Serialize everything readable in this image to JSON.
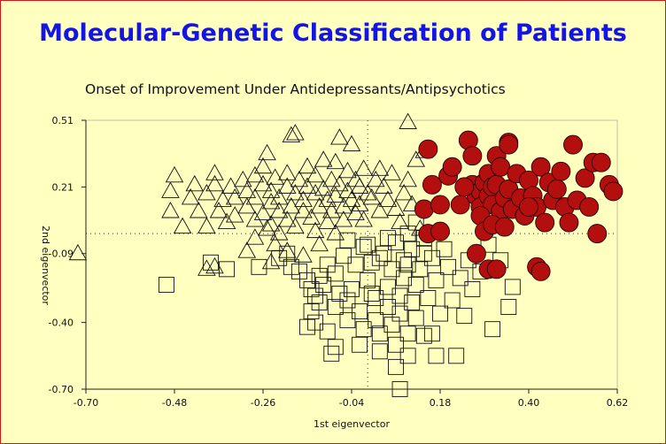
{
  "header": {
    "title": "Molecular-Genetic Classification of Patients"
  },
  "colors": {
    "background": "#ffffc0",
    "title": "#1414e6",
    "border": "#d81818",
    "circle_fill": "#b30f0f"
  },
  "chart_data": {
    "type": "scatter",
    "title": "Onset of Improvement Under Antidepressants/Antipsychotics",
    "xlabel": "1st eigenvector",
    "ylabel": "2nd eigenvector",
    "xlim": [
      -0.7,
      0.62
    ],
    "ylim": [
      -0.7,
      0.51
    ],
    "x_ticks": [
      "-0.70",
      "-0.48",
      "-0.26",
      "-0.04",
      "0.18",
      "0.40",
      "0.62"
    ],
    "y_ticks": [
      "0.51",
      "0.21",
      "-0.09",
      "-0.40",
      "-0.70"
    ],
    "reference_lines": {
      "x": 0.0,
      "y": 0.0
    },
    "grid": false,
    "series": [
      {
        "marker": "triangle",
        "points": [
          [
            -0.72,
            -0.09
          ],
          [
            -0.48,
            0.26
          ],
          [
            -0.49,
            0.19
          ],
          [
            -0.49,
            0.1
          ],
          [
            -0.46,
            0.03
          ],
          [
            -0.42,
            0.1
          ],
          [
            -0.4,
            0.03
          ],
          [
            -0.37,
            0.1
          ],
          [
            -0.44,
            0.16
          ],
          [
            -0.43,
            0.22
          ],
          [
            -0.4,
            0.18
          ],
          [
            -0.38,
            0.22
          ],
          [
            -0.38,
            0.27
          ],
          [
            -0.36,
            0.15
          ],
          [
            -0.35,
            0.05
          ],
          [
            -0.33,
            0.16
          ],
          [
            -0.33,
            0.08
          ],
          [
            -0.34,
            0.21
          ],
          [
            -0.31,
            0.24
          ],
          [
            -0.3,
            0.19
          ],
          [
            -0.3,
            0.12
          ],
          [
            -0.28,
            0.16
          ],
          [
            -0.28,
            0.06
          ],
          [
            -0.28,
            0.26
          ],
          [
            -0.26,
            0.22
          ],
          [
            -0.26,
            0.09
          ],
          [
            -0.26,
            0.3
          ],
          [
            -0.24,
            0.14
          ],
          [
            -0.24,
            0.19
          ],
          [
            -0.24,
            0.04
          ],
          [
            -0.23,
            0.25
          ],
          [
            -0.22,
            0.1
          ],
          [
            -0.22,
            0.16
          ],
          [
            -0.2,
            0.21
          ],
          [
            -0.2,
            0.27
          ],
          [
            -0.2,
            0.06
          ],
          [
            -0.19,
            0.12
          ],
          [
            -0.18,
            0.18
          ],
          [
            -0.18,
            0.03
          ],
          [
            -0.17,
            0.24
          ],
          [
            -0.16,
            0.1
          ],
          [
            -0.16,
            0.15
          ],
          [
            -0.15,
            0.3
          ],
          [
            -0.15,
            0.21
          ],
          [
            -0.14,
            0.07
          ],
          [
            -0.13,
            0.18
          ],
          [
            -0.13,
            0.26
          ],
          [
            -0.12,
            0.12
          ],
          [
            -0.11,
            0.33
          ],
          [
            -0.11,
            0.2
          ],
          [
            -0.1,
            0.05
          ],
          [
            -0.1,
            0.15
          ],
          [
            -0.09,
            0.24
          ],
          [
            -0.09,
            0.1
          ],
          [
            -0.08,
            0.17
          ],
          [
            -0.08,
            0.32
          ],
          [
            -0.07,
            0.22
          ],
          [
            -0.06,
            0.12
          ],
          [
            -0.06,
            0.06
          ],
          [
            -0.05,
            0.28
          ],
          [
            -0.05,
            0.19
          ],
          [
            -0.04,
            0.15
          ],
          [
            -0.04,
            0.4
          ],
          [
            -0.03,
            0.24
          ],
          [
            -0.03,
            0.09
          ],
          [
            -0.02,
            0.21
          ],
          [
            -0.02,
            0.13
          ],
          [
            -0.01,
            0.29
          ],
          [
            0.0,
            0.18
          ],
          [
            -0.01,
            0.06
          ],
          [
            0.01,
            0.16
          ],
          [
            0.02,
            0.24
          ],
          [
            0.03,
            0.1
          ],
          [
            0.04,
            0.21
          ],
          [
            0.05,
            0.15
          ],
          [
            0.06,
            0.27
          ],
          [
            0.07,
            0.11
          ],
          [
            0.08,
            0.05
          ],
          [
            0.09,
            0.18
          ],
          [
            0.1,
            0.24
          ],
          [
            0.11,
            0.13
          ],
          [
            0.12,
            0.33
          ],
          [
            0.13,
            0.02
          ],
          [
            0.14,
            0.37
          ],
          [
            0.1,
            0.5
          ],
          [
            -0.18,
            0.45
          ],
          [
            -0.25,
            0.36
          ],
          [
            -0.07,
            0.43
          ],
          [
            0.03,
            0.29
          ],
          [
            -0.19,
            0.44
          ],
          [
            -0.22,
            0.0
          ],
          [
            -0.25,
            0.02
          ],
          [
            -0.23,
            -0.05
          ],
          [
            -0.24,
            -0.13
          ],
          [
            -0.3,
            -0.08
          ],
          [
            -0.28,
            -0.02
          ],
          [
            -0.2,
            -0.08
          ],
          [
            -0.16,
            -0.1
          ],
          [
            -0.13,
            0.01
          ],
          [
            -0.12,
            -0.05
          ],
          [
            -0.08,
            0.0
          ],
          [
            -0.4,
            -0.16
          ],
          [
            -0.38,
            -0.15
          ]
        ]
      },
      {
        "marker": "square",
        "points": [
          [
            -0.5,
            -0.23
          ],
          [
            -0.39,
            -0.13
          ],
          [
            -0.35,
            -0.16
          ],
          [
            -0.27,
            -0.15
          ],
          [
            -0.22,
            -0.11
          ],
          [
            -0.2,
            -0.09
          ],
          [
            -0.19,
            -0.15
          ],
          [
            -0.17,
            -0.17
          ],
          [
            -0.15,
            -0.21
          ],
          [
            -0.14,
            -0.25
          ],
          [
            -0.14,
            -0.35
          ],
          [
            -0.13,
            -0.4
          ],
          [
            -0.13,
            -0.28
          ],
          [
            -0.12,
            -0.19
          ],
          [
            -0.12,
            -0.31
          ],
          [
            -0.11,
            -0.23
          ],
          [
            -0.1,
            -0.14
          ],
          [
            -0.1,
            -0.44
          ],
          [
            -0.09,
            -0.54
          ],
          [
            -0.08,
            -0.51
          ],
          [
            -0.08,
            -0.33
          ],
          [
            -0.08,
            -0.18
          ],
          [
            -0.07,
            -0.27
          ],
          [
            -0.06,
            -0.1
          ],
          [
            -0.05,
            -0.3
          ],
          [
            -0.05,
            -0.39
          ],
          [
            -0.05,
            -0.03
          ],
          [
            -0.04,
            -0.25
          ],
          [
            -0.03,
            -0.14
          ],
          [
            -0.02,
            -0.35
          ],
          [
            -0.02,
            -0.5
          ],
          [
            -0.01,
            -0.43
          ],
          [
            0.0,
            -0.21
          ],
          [
            0.0,
            -0.05
          ],
          [
            0.01,
            -0.13
          ],
          [
            0.02,
            -0.29
          ],
          [
            0.02,
            -0.39
          ],
          [
            0.03,
            -0.45
          ],
          [
            0.03,
            -0.53
          ],
          [
            0.04,
            -0.09
          ],
          [
            0.05,
            -0.24
          ],
          [
            0.05,
            -0.33
          ],
          [
            0.06,
            -0.16
          ],
          [
            0.06,
            -0.41
          ],
          [
            0.07,
            -0.5
          ],
          [
            0.07,
            -0.04
          ],
          [
            0.08,
            -0.28
          ],
          [
            0.08,
            -0.36
          ],
          [
            0.09,
            -0.2
          ],
          [
            0.09,
            -0.12
          ],
          [
            0.1,
            -0.45
          ],
          [
            0.1,
            -0.55
          ],
          [
            0.11,
            -0.31
          ],
          [
            0.11,
            -0.07
          ],
          [
            0.12,
            -0.23
          ],
          [
            0.12,
            -0.38
          ],
          [
            0.13,
            -0.16
          ],
          [
            0.14,
            -0.46
          ],
          [
            0.14,
            -0.02
          ],
          [
            0.15,
            -0.29
          ],
          [
            0.16,
            -0.11
          ],
          [
            0.17,
            -0.21
          ],
          [
            0.17,
            -0.55
          ],
          [
            0.18,
            -0.36
          ],
          [
            0.19,
            -0.07
          ],
          [
            0.2,
            -0.15
          ],
          [
            0.21,
            -0.3
          ],
          [
            0.22,
            -0.55
          ],
          [
            0.23,
            -0.2
          ],
          [
            0.24,
            -0.37
          ],
          [
            0.25,
            -0.12
          ],
          [
            0.26,
            -0.25
          ],
          [
            0.28,
            -0.17
          ],
          [
            0.3,
            -0.05
          ],
          [
            0.31,
            -0.43
          ],
          [
            0.33,
            -0.12
          ],
          [
            0.35,
            -0.33
          ],
          [
            0.36,
            -0.24
          ],
          [
            0.08,
            -0.7
          ],
          [
            0.1,
            -0.14
          ],
          [
            -0.01,
            -0.06
          ],
          [
            0.03,
            -0.11
          ],
          [
            0.12,
            0.05
          ],
          [
            0.14,
            -0.09
          ],
          [
            0.05,
            -0.02
          ],
          [
            0.07,
            -0.6
          ],
          [
            0.16,
            -0.45
          ],
          [
            0.1,
            0.0
          ],
          [
            -0.15,
            -0.42
          ],
          [
            0.01,
            -0.27
          ]
        ]
      },
      {
        "marker": "circle",
        "points": [
          [
            0.15,
            0.38
          ],
          [
            0.16,
            0.22
          ],
          [
            0.2,
            0.26
          ],
          [
            0.21,
            0.3
          ],
          [
            0.14,
            0.11
          ],
          [
            0.15,
            0.0
          ],
          [
            0.18,
            0.01
          ],
          [
            0.18,
            0.13
          ],
          [
            0.23,
            0.13
          ],
          [
            0.25,
            0.42
          ],
          [
            0.26,
            0.35
          ],
          [
            0.26,
            0.22
          ],
          [
            0.27,
            0.17
          ],
          [
            0.28,
            0.19
          ],
          [
            0.28,
            0.12
          ],
          [
            0.29,
            0.23
          ],
          [
            0.3,
            0.27
          ],
          [
            0.3,
            0.17
          ],
          [
            0.31,
            0.21
          ],
          [
            0.31,
            0.13
          ],
          [
            0.32,
            0.35
          ],
          [
            0.32,
            0.22
          ],
          [
            0.33,
            0.1
          ],
          [
            0.33,
            0.3
          ],
          [
            0.34,
            0.16
          ],
          [
            0.35,
            0.41
          ],
          [
            0.35,
            0.2
          ],
          [
            0.36,
            0.11
          ],
          [
            0.37,
            0.27
          ],
          [
            0.38,
            0.16
          ],
          [
            0.39,
            0.08
          ],
          [
            0.4,
            0.24
          ],
          [
            0.41,
            0.17
          ],
          [
            0.42,
            0.12
          ],
          [
            0.43,
            0.3
          ],
          [
            0.44,
            0.05
          ],
          [
            0.45,
            0.23
          ],
          [
            0.46,
            0.15
          ],
          [
            0.47,
            0.2
          ],
          [
            0.48,
            0.28
          ],
          [
            0.49,
            0.12
          ],
          [
            0.5,
            0.05
          ],
          [
            0.51,
            0.4
          ],
          [
            0.52,
            0.15
          ],
          [
            0.54,
            0.25
          ],
          [
            0.55,
            0.12
          ],
          [
            0.56,
            0.32
          ],
          [
            0.57,
            0.0
          ],
          [
            0.58,
            0.32
          ],
          [
            0.6,
            0.22
          ],
          [
            0.61,
            0.19
          ],
          [
            0.28,
            0.08
          ],
          [
            0.29,
            0.01
          ],
          [
            0.31,
            0.04
          ],
          [
            0.34,
            0.03
          ],
          [
            0.27,
            -0.09
          ],
          [
            0.3,
            -0.16
          ],
          [
            0.32,
            -0.16
          ],
          [
            0.42,
            -0.15
          ],
          [
            0.43,
            -0.17
          ],
          [
            0.35,
            0.4
          ],
          [
            0.24,
            0.21
          ],
          [
            0.4,
            0.12
          ]
        ]
      }
    ]
  }
}
